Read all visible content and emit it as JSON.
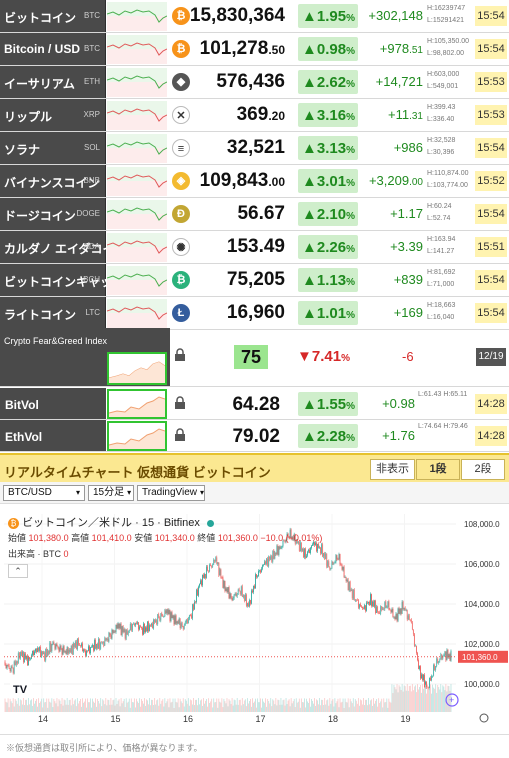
{
  "tickers": [
    {
      "name": "ビットコイン",
      "symbol": "BTC",
      "coin_color": "#f7931a",
      "coin_glyph": "₿",
      "price": "15,830,364",
      "price_dec": "",
      "pct": "1.95",
      "change": "+302,148",
      "high": "H:16239747",
      "low": "L:15291421",
      "time": "15:54"
    },
    {
      "name": "Bitcoin / USD",
      "symbol": "BTC",
      "coin_color": "#f7931a",
      "coin_glyph": "₿",
      "price": "101,278",
      "price_dec": ".50",
      "pct": "0.98",
      "change": "+978",
      "change_dec": ".51",
      "high": "H:105,350.00",
      "low": "L:98,802.00",
      "time": "15:54"
    },
    {
      "name": "イーサリアム",
      "symbol": "ETH",
      "coin_color": "#555555",
      "coin_glyph": "◆",
      "price": "576,436",
      "price_dec": "",
      "pct": "2.62",
      "change": "+14,721",
      "high": "H:603,000",
      "low": "L:549,001",
      "time": "15:53"
    },
    {
      "name": "リップル",
      "symbol": "XRP",
      "coin_color": "#ffffff",
      "coin_glyph": "✕",
      "price": "369",
      "price_dec": ".20",
      "pct": "3.16",
      "change": "+11",
      "change_dec": ".31",
      "high": "H:399.43",
      "low": "L:336.40",
      "time": "15:53"
    },
    {
      "name": "ソラナ",
      "symbol": "SOL",
      "coin_color": "#ffffff",
      "coin_glyph": "≡",
      "price": "32,521",
      "price_dec": "",
      "pct": "3.13",
      "change": "+986",
      "high": "H:32,528",
      "low": "L:30,396",
      "time": "15:54"
    },
    {
      "name": "バイナンスコイン",
      "symbol": "BNB",
      "coin_color": "#f3ba2f",
      "coin_glyph": "◈",
      "price": "109,843",
      "price_dec": ".00",
      "pct": "3.01",
      "change": "+3,209",
      "change_dec": ".00",
      "high": "H:110,874.00",
      "low": "L:103,774.00",
      "time": "15:52"
    },
    {
      "name": "ドージコイン",
      "symbol": "DOGE",
      "coin_color": "#c2a633",
      "coin_glyph": "Ð",
      "price": "56.67",
      "price_dec": "",
      "pct": "2.10",
      "change": "+1.17",
      "high": "H:60.24",
      "low": "L:52.74",
      "time": "15:54"
    },
    {
      "name": "カルダノ エイダコイン",
      "symbol": "ADA",
      "coin_color": "#ffffff",
      "coin_glyph": "✺",
      "price": "153.49",
      "price_dec": "",
      "pct": "2.26",
      "change": "+3.39",
      "high": "H:163.94",
      "low": "L:141.27",
      "time": "15:51"
    },
    {
      "name": "ビットコインキャッシュ",
      "symbol": "BCH",
      "coin_color": "#2ab27b",
      "coin_glyph": "₿",
      "price": "75,205",
      "price_dec": "",
      "pct": "1.13",
      "change": "+839",
      "high": "H:81,692",
      "low": "L:71,000",
      "time": "15:54"
    },
    {
      "name": "ライトコイン",
      "symbol": "LTC",
      "coin_color": "#345d9d",
      "coin_glyph": "Ł",
      "price": "16,960",
      "price_dec": "",
      "pct": "1.01",
      "change": "+169",
      "high": "H:18,663",
      "low": "L:16,040",
      "time": "15:54"
    }
  ],
  "fear_greed": {
    "label": "Crypto Fear&Greed Index",
    "value": "75",
    "pct": "7.41",
    "change": "-6",
    "date": "12/19"
  },
  "vol_rows": [
    {
      "name": "BitVol",
      "price": "64.28",
      "pct": "1.55",
      "change": "+0.98",
      "low": "L:61.43",
      "high": "H:65.11",
      "time": "14:28"
    },
    {
      "name": "EthVol",
      "price": "79.02",
      "pct": "2.28",
      "change": "+1.76",
      "low": "L:74.64",
      "high": "H:79.46",
      "time": "14:28"
    }
  ],
  "panel": {
    "title": "リアルタイムチャート 仮想通貨 ビットコイン",
    "tabs": [
      "非表示",
      "1段",
      "2段"
    ],
    "active_tab": "1段"
  },
  "toolbar": {
    "pair": "BTC/USD",
    "interval": "15分足",
    "provider": "TradingView"
  },
  "legend": {
    "title": "ビットコイン／米ドル · 15 · Bitfinex",
    "open_label": "始値",
    "open": "101,380.0",
    "high_label": "高値",
    "high": "101,410.0",
    "low_label": "安値",
    "low": "101,340.0",
    "close_label": "終値",
    "close": "101,360.0",
    "chg": "−10.0 (−0.01%)",
    "volume_label": "出来高 · BTC",
    "volume": "0"
  },
  "chart_data": {
    "type": "candlestick",
    "x_ticks": [
      "14",
      "15",
      "16",
      "17",
      "18",
      "19"
    ],
    "y_ticks": [
      "108,000.0",
      "106,000.0",
      "104,000.0",
      "102,000.0",
      "100,000.0"
    ],
    "ylim": [
      99200,
      108500
    ],
    "last_price": "101,360.0",
    "close_series": [
      101000,
      100700,
      101500,
      101200,
      101800,
      101400,
      102000,
      101700,
      101600,
      102100,
      101600,
      101900,
      102000,
      102400,
      102900,
      102500,
      103100,
      102700,
      102900,
      103300,
      103600,
      103200,
      102900,
      103500,
      105000,
      105700,
      106200,
      104900,
      104300,
      104700,
      103900,
      105400,
      106000,
      106400,
      106900,
      107500,
      107100,
      106400,
      107000,
      106700,
      105800,
      106400,
      105200,
      104300,
      103700,
      104200,
      103600,
      104000,
      103300,
      103900,
      103000,
      100600,
      99800,
      101000,
      101500,
      101360
    ],
    "colors": {
      "up": "#26a69a",
      "down": "#ef5350"
    }
  },
  "footer": "※仮想通貨は取引所により、価格が異なります。"
}
